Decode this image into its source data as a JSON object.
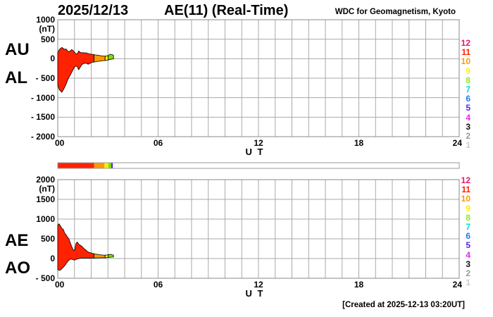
{
  "page": {
    "date": "2025/12/13",
    "title": "AE(11) (Real-Time)",
    "source": "WDC for Geomagnetism, Kyoto",
    "ut_label": "U T",
    "footer": "[Created at 2025-12-13 03:20UT]"
  },
  "colors": {
    "grid": "#aaaaaa",
    "frame": "#888888",
    "outline": "#000000",
    "background": "#ffffff"
  },
  "station_legend": {
    "values": [
      "12",
      "11",
      "10",
      "9",
      "8",
      "7",
      "6",
      "5",
      "4",
      "3",
      "2",
      "1"
    ],
    "colors": [
      "#ee1177",
      "#ff2200",
      "#ff9900",
      "#ffee00",
      "#88ee11",
      "#00ddcc",
      "#2277ee",
      "#5522ee",
      "#ee22ee",
      "#111111",
      "#999999",
      "#cccccc"
    ]
  },
  "station_bar": {
    "xlim": [
      0,
      24
    ],
    "track_color": "#ffffff",
    "border_color": "#999999",
    "segments": [
      {
        "from": 0,
        "to": 2.17,
        "stations": 11,
        "color": "#ff2200"
      },
      {
        "from": 2.17,
        "to": 2.79,
        "stations": 10,
        "color": "#ff9900"
      },
      {
        "from": 2.79,
        "to": 3.03,
        "stations": 9,
        "color": "#ffee00"
      },
      {
        "from": 3.03,
        "to": 3.2,
        "stations": 8,
        "color": "#7ddd11"
      },
      {
        "from": 3.2,
        "to": 3.29,
        "stations": 5,
        "color": "#5522ee"
      }
    ]
  },
  "chart_data": [
    {
      "type": "area",
      "title": "AE(11) (Real-Time) - AU/AL panel",
      "panel_labels": [
        "AU",
        "AL"
      ],
      "unit_label": "(nT)",
      "xlabel": "U T",
      "xlim": [
        0,
        24
      ],
      "ylim": [
        1000,
        -2000
      ],
      "grid": true,
      "grid_t_step": 1,
      "grid_v_step": 500,
      "yticks": [
        {
          "label": "1000",
          "v": 1000
        },
        {
          "label": "500",
          "v": 500
        },
        {
          "label": "0",
          "v": 0
        },
        {
          "label": "- 500",
          "v": -500
        },
        {
          "label": "- 1000",
          "v": -1000
        },
        {
          "label": "- 1500",
          "v": -1500
        },
        {
          "label": "- 2000",
          "v": -2000
        }
      ],
      "xticks": [
        {
          "label": "00",
          "t": 0,
          "align": "left"
        },
        {
          "label": "06",
          "t": 6,
          "align": "center"
        },
        {
          "label": "12",
          "t": 12,
          "align": "center"
        },
        {
          "label": "18",
          "t": 18,
          "align": "center"
        },
        {
          "label": "24",
          "t": 24,
          "align": "right"
        }
      ],
      "t_hours": [
        0,
        0.083,
        0.167,
        0.25,
        0.333,
        0.417,
        0.5,
        0.583,
        0.667,
        0.75,
        0.833,
        0.917,
        1,
        1.083,
        1.167,
        1.25,
        1.333,
        1.417,
        1.5,
        1.583,
        1.667,
        1.75,
        1.833,
        1.917,
        2,
        2.083,
        2.167,
        2.25,
        2.333,
        2.417,
        2.5,
        2.583,
        2.667,
        2.75,
        2.833,
        2.917,
        3,
        3.083,
        3.167,
        3.25,
        3.333
      ],
      "series": [
        {
          "name": "AU",
          "values": [
            150,
            230,
            265,
            290,
            260,
            240,
            250,
            205,
            175,
            205,
            235,
            210,
            165,
            130,
            120,
            200,
            165,
            150,
            158,
            148,
            152,
            142,
            132,
            122,
            117,
            112,
            107,
            97,
            92,
            87,
            82,
            77,
            72,
            70,
            67,
            72,
            77,
            105,
            115,
            105,
            85
          ]
        },
        {
          "name": "AL",
          "values": [
            -680,
            -790,
            -830,
            -860,
            -800,
            -730,
            -650,
            -560,
            -480,
            -420,
            -350,
            -280,
            -215,
            -185,
            -205,
            -285,
            -225,
            -165,
            -135,
            -122,
            -112,
            -130,
            -142,
            -122,
            -102,
            -92,
            -87,
            -82,
            -72,
            -67,
            -62,
            -57,
            -52,
            -50,
            -47,
            -42,
            -37,
            -25,
            -15,
            -8,
            -5
          ]
        }
      ],
      "color_segments": [
        {
          "from": 0,
          "to": 2.17,
          "stations": 11,
          "color": "#ff2200"
        },
        {
          "from": 2.17,
          "to": 2.83,
          "stations": 10,
          "color": "#ff9900"
        },
        {
          "from": 2.83,
          "to": 3.02,
          "stations": 9,
          "color": "#ffee00"
        },
        {
          "from": 3.02,
          "to": 3.333,
          "stations": 8,
          "color": "#7ddd11"
        }
      ]
    },
    {
      "type": "area",
      "title": "AE(11) (Real-Time) - AE/AO panel",
      "panel_labels": [
        "AE",
        "AO"
      ],
      "unit_label": "(nT)",
      "xlabel": "U T",
      "xlim": [
        0,
        24
      ],
      "ylim": [
        2000,
        -500
      ],
      "grid": true,
      "grid_t_step": 1,
      "grid_v_step": 500,
      "yticks": [
        {
          "label": "2000",
          "v": 2000
        },
        {
          "label": "1500",
          "v": 1500
        },
        {
          "label": "1000",
          "v": 1000
        },
        {
          "label": "500",
          "v": 500
        },
        {
          "label": "0",
          "v": 0
        },
        {
          "label": "- 500",
          "v": -500
        }
      ],
      "xticks": [
        {
          "label": "00",
          "t": 0,
          "align": "left"
        },
        {
          "label": "06",
          "t": 6,
          "align": "center"
        },
        {
          "label": "12",
          "t": 12,
          "align": "center"
        },
        {
          "label": "18",
          "t": 18,
          "align": "center"
        },
        {
          "label": "24",
          "t": 24,
          "align": "right"
        }
      ],
      "t_hours": [
        0,
        0.083,
        0.167,
        0.25,
        0.333,
        0.417,
        0.5,
        0.583,
        0.667,
        0.75,
        0.833,
        0.917,
        1,
        1.083,
        1.167,
        1.25,
        1.333,
        1.417,
        1.5,
        1.583,
        1.667,
        1.75,
        1.833,
        1.917,
        2,
        2.083,
        2.167,
        2.25,
        2.333,
        2.417,
        2.5,
        2.583,
        2.667,
        2.75,
        2.833,
        2.917,
        3,
        3.083,
        3.167,
        3.25,
        3.333
      ],
      "series": [
        {
          "name": "AE",
          "values": [
            850,
            880,
            820,
            765,
            740,
            645,
            600,
            545,
            500,
            400,
            305,
            225,
            200,
            375,
            420,
            365,
            340,
            320,
            285,
            245,
            225,
            185,
            165,
            152,
            142,
            132,
            122,
            112,
            107,
            102,
            97,
            92,
            90,
            87,
            86,
            90,
            95,
            102,
            107,
            97,
            86
          ]
        },
        {
          "name": "AO",
          "values": [
            -280,
            -300,
            -290,
            -255,
            -220,
            -180,
            -130,
            -85,
            -45,
            -20,
            -12,
            -28,
            -42,
            -22,
            -12,
            -2,
            8,
            14,
            10,
            6,
            10,
            14,
            10,
            6,
            10,
            14,
            10,
            14,
            18,
            14,
            18,
            22,
            18,
            22,
            18,
            22,
            26,
            30,
            34,
            36,
            40
          ]
        }
      ],
      "color_segments": [
        {
          "from": 0,
          "to": 2.17,
          "stations": 11,
          "color": "#ff2200"
        },
        {
          "from": 2.17,
          "to": 2.83,
          "stations": 10,
          "color": "#ff9900"
        },
        {
          "from": 2.83,
          "to": 3.02,
          "stations": 9,
          "color": "#ffee00"
        },
        {
          "from": 3.02,
          "to": 3.333,
          "stations": 8,
          "color": "#7ddd11"
        }
      ]
    }
  ]
}
